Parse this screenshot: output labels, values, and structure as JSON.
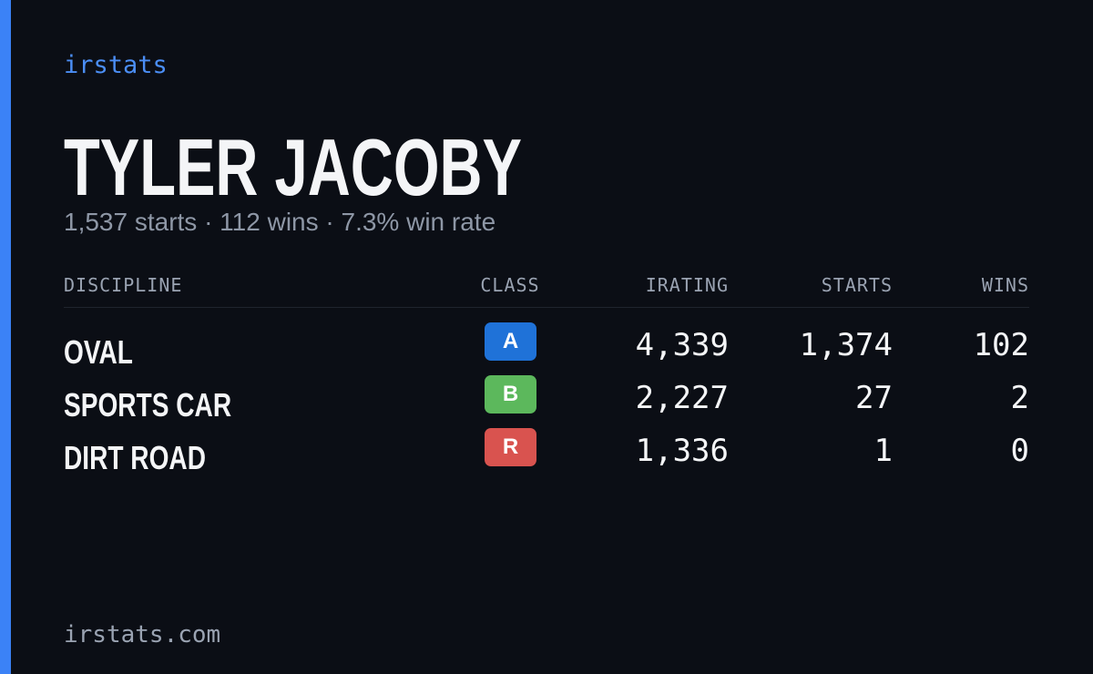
{
  "brand": "irstats",
  "driver": {
    "name": "TYLER JACOBY",
    "summary": "1,537 starts · 112 wins · 7.3% win rate"
  },
  "table": {
    "headers": [
      "DISCIPLINE",
      "CLASS",
      "IRATING",
      "STARTS",
      "WINS"
    ],
    "rows": [
      {
        "discipline": "OVAL",
        "class": "A",
        "class_color": "#1f72d8",
        "irating": "4,339",
        "starts": "1,374",
        "wins": "102"
      },
      {
        "discipline": "SPORTS CAR",
        "class": "B",
        "class_color": "#5cb85c",
        "irating": "2,227",
        "starts": "27",
        "wins": "2"
      },
      {
        "discipline": "DIRT ROAD",
        "class": "R",
        "class_color": "#d9534f",
        "irating": "1,336",
        "starts": "1",
        "wins": "0"
      }
    ]
  },
  "footer": "irstats.com"
}
